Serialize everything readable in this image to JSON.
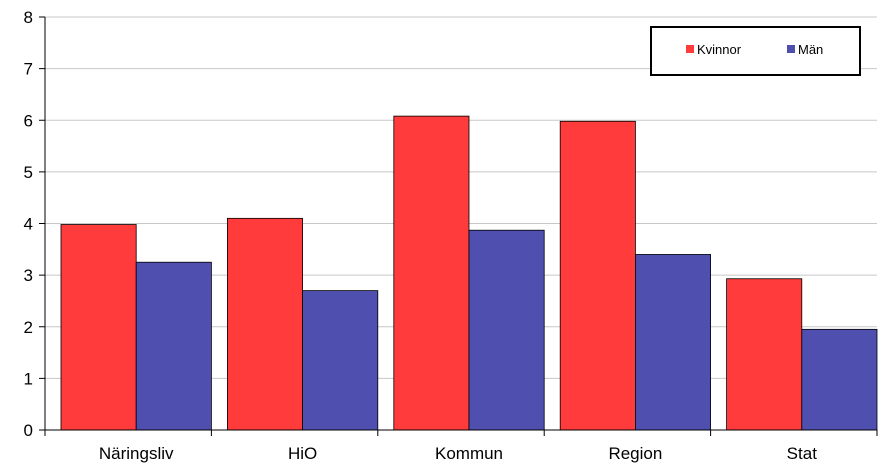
{
  "chart_data": {
    "type": "bar",
    "categories": [
      "Näringsliv",
      "HiO",
      "Kommun",
      "Region",
      "Stat"
    ],
    "series": [
      {
        "name": "Kvinnor",
        "values": [
          3.98,
          4.1,
          6.08,
          5.98,
          2.93
        ],
        "color": "#ff3b3b"
      },
      {
        "name": "Män",
        "values": [
          3.25,
          2.7,
          3.87,
          3.4,
          1.95
        ],
        "color": "#4f4faf"
      }
    ],
    "yticks": [
      "0",
      "1",
      "2",
      "3",
      "4",
      "5",
      "6",
      "7",
      "8"
    ],
    "ylim": [
      0,
      8
    ],
    "grid": true,
    "legend_position": "top-right"
  }
}
